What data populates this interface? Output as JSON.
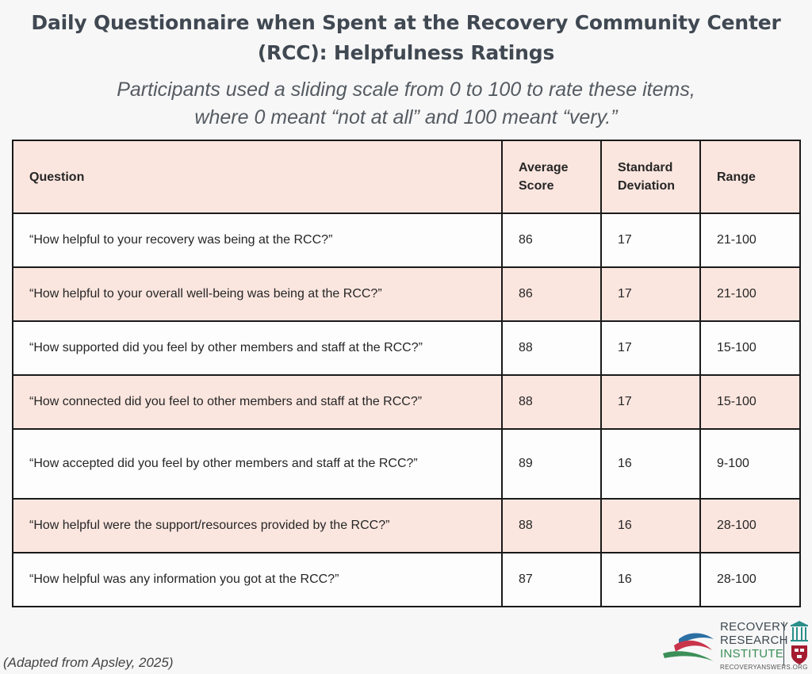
{
  "header": {
    "title_line1": "Daily Questionnaire when Spent at the Recovery Community Center",
    "title_line2": "(RCC): Helpfulness Ratings",
    "subtitle_line1": "Participants used a sliding scale from 0 to 100 to rate these items,",
    "subtitle_line2": "where 0 meant “not at all” and 100 meant “very.”"
  },
  "table": {
    "columns": {
      "question": "Question",
      "average_line1": "Average",
      "average_line2": "Score",
      "sd_line1": "Standard",
      "sd_line2": "Deviation",
      "range": "Range"
    },
    "rows": [
      {
        "question": "“How helpful to your recovery was being at the RCC?”",
        "average": "86",
        "sd": "17",
        "range": "21-100"
      },
      {
        "question": "“How helpful to your overall well-being was being at the RCC?”",
        "average": "86",
        "sd": "17",
        "range": "21-100"
      },
      {
        "question": "“How supported did you feel by other members and staff at the RCC?”",
        "average": "88",
        "sd": "17",
        "range": "15-100"
      },
      {
        "question": "“How connected did you feel to other members and staff at the RCC?”",
        "average": "88",
        "sd": "17",
        "range": "15-100"
      },
      {
        "question": "“How accepted did you feel by other members and staff at the RCC?”",
        "average": "89",
        "sd": "16",
        "range": "9-100"
      },
      {
        "question": "“How helpful were the support/resources provided by the RCC?”",
        "average": "88",
        "sd": "16",
        "range": "28-100"
      },
      {
        "question": "“How helpful was any information you got at the RCC?”",
        "average": "87",
        "sd": "16",
        "range": "28-100"
      }
    ]
  },
  "footnote": "(Adapted from Apsley, 2025)",
  "logo": {
    "line1": "RECOVERY",
    "line2": "RESEARCH",
    "line3": "INSTITUTE",
    "url": "RECOVERYANSWERS.ORG"
  },
  "colors": {
    "header_fill": "#fbe6df",
    "alt_row_fill": "#fbe6df",
    "plain_row_fill": "#fdfdfd",
    "border": "#1a1a1a",
    "title_text": "#404852"
  }
}
